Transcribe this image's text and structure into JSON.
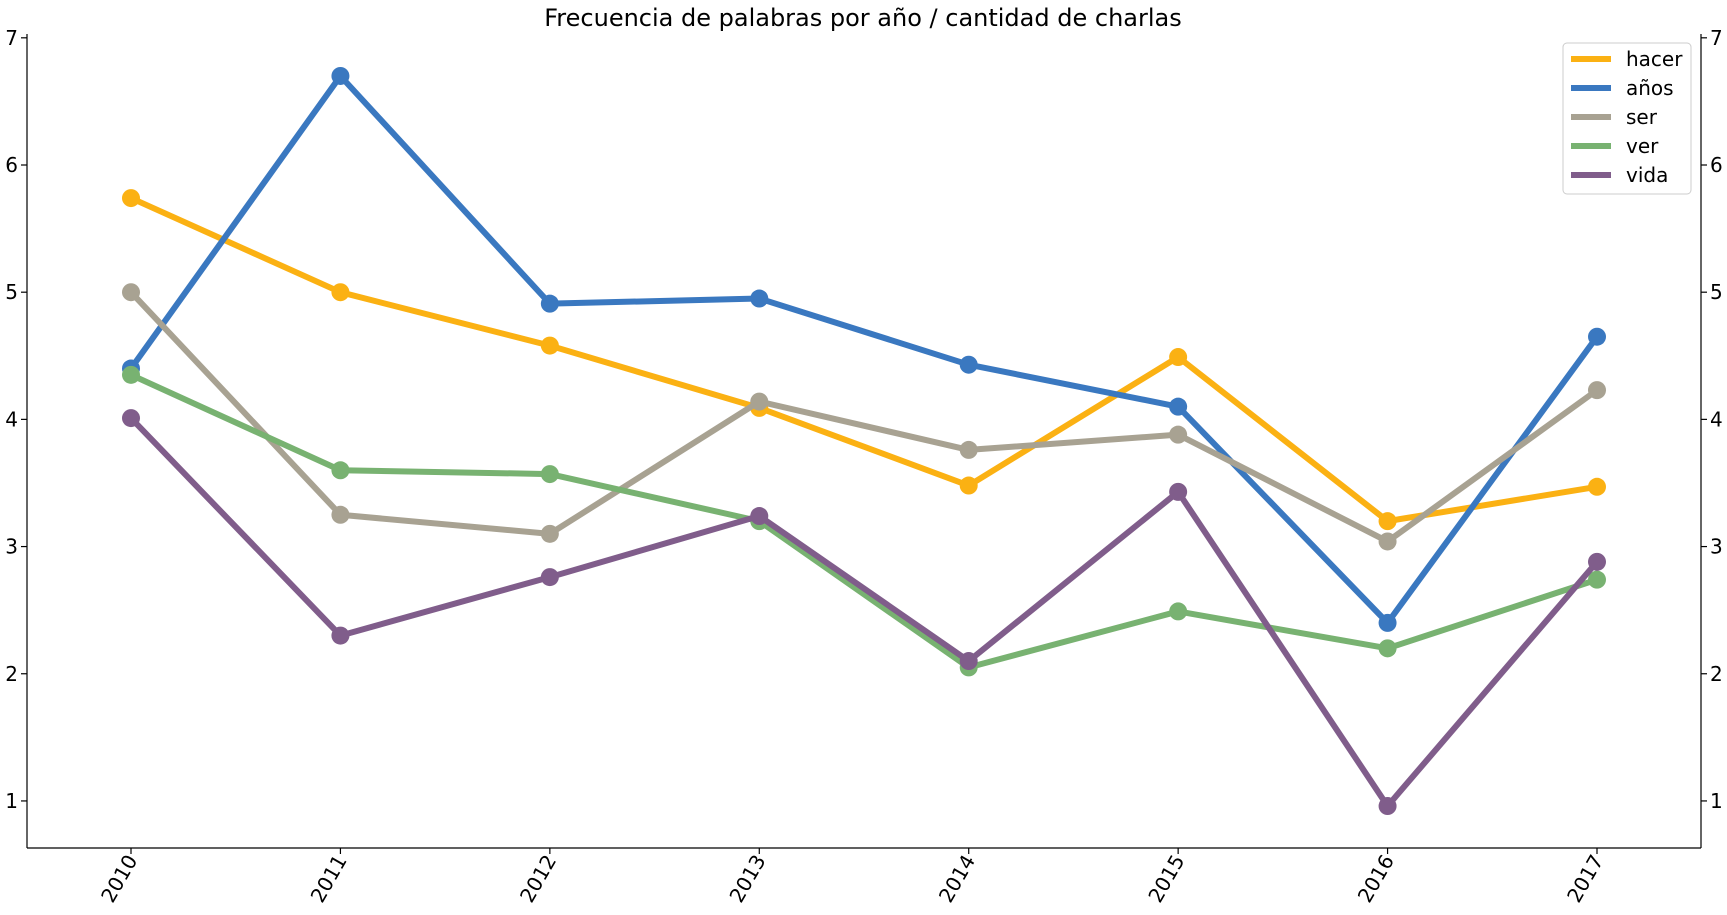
{
  "chart_data": {
    "type": "line",
    "title": "Frecuencia de palabras por año / cantidad de charlas",
    "xlabel": "",
    "ylabel": "",
    "categories": [
      "2010",
      "2011",
      "2012",
      "2013",
      "2014",
      "2015",
      "2016",
      "2017"
    ],
    "ylim": [
      0.63,
      7.03
    ],
    "yticks": [
      1,
      2,
      3,
      4,
      5,
      6,
      7
    ],
    "dual_y_axis": true,
    "grid": false,
    "legend_position": "top-right",
    "series": [
      {
        "name": "hacer",
        "color": "#fbb113",
        "values": [
          5.74,
          5.0,
          4.58,
          4.09,
          3.48,
          4.49,
          3.2,
          3.47
        ]
      },
      {
        "name": "años",
        "color": "#3a78c0",
        "values": [
          4.4,
          6.7,
          4.91,
          4.95,
          4.43,
          4.1,
          2.4,
          4.65
        ]
      },
      {
        "name": "ser",
        "color": "#a8a292",
        "values": [
          5.0,
          3.25,
          3.1,
          4.14,
          3.76,
          3.88,
          3.04,
          4.23
        ]
      },
      {
        "name": "ver",
        "color": "#78b271",
        "values": [
          4.35,
          3.6,
          3.57,
          3.2,
          2.05,
          2.49,
          2.2,
          2.74
        ]
      },
      {
        "name": "vida",
        "color": "#805d8b",
        "values": [
          4.01,
          2.3,
          2.76,
          3.24,
          2.1,
          3.43,
          0.96,
          2.88
        ]
      }
    ]
  }
}
